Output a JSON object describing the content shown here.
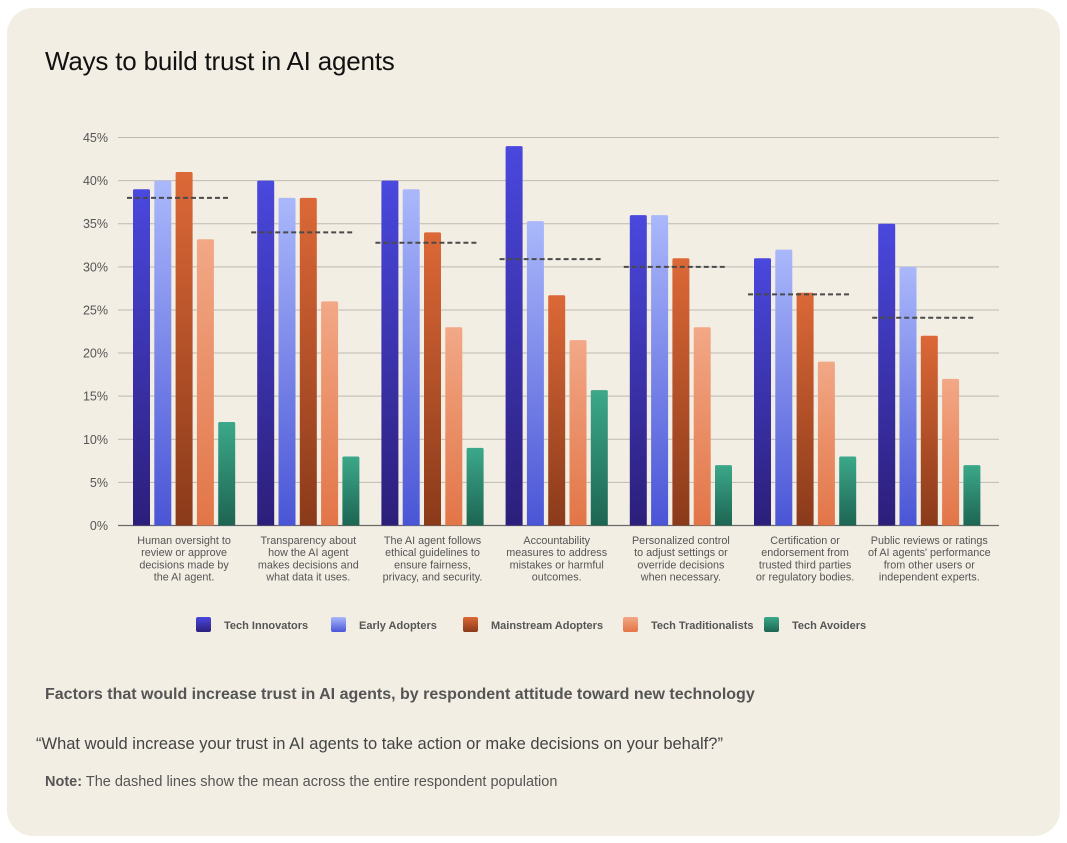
{
  "title": "Ways to build trust in AI agents",
  "subtitle": "Factors that would increase trust in AI agents, by respondent attitude toward new technology",
  "question": "“What would increase your trust in AI agents to take action or make decisions on your behalf?”",
  "note": {
    "label": "Note:",
    "text": "The dashed lines show the mean across the entire respondent population"
  },
  "chart_data": {
    "type": "bar",
    "ylim": [
      0,
      45
    ],
    "yticks": [
      "0%",
      "5%",
      "10%",
      "15%",
      "20%",
      "25%",
      "30%",
      "35%",
      "40%",
      "45%"
    ],
    "grid": true,
    "legend_position": "bottom",
    "categories": [
      [
        "Human oversight to",
        "review or approve",
        "decisions made by",
        "the AI agent."
      ],
      [
        "Transparency about",
        "how the AI agent",
        "makes decisions and",
        "what data it uses."
      ],
      [
        "The AI agent follows",
        "ethical guidelines to",
        "ensure fairness,",
        "privacy, and security."
      ],
      [
        "Accountability",
        "measures to address",
        "mistakes or harmful",
        "outcomes."
      ],
      [
        "Personalized control",
        "to adjust settings or",
        "override decisions",
        "when necessary."
      ],
      [
        "Certification or",
        "endorsement from",
        "trusted third parties",
        "or regulatory bodies."
      ],
      [
        "Public reviews or ratings",
        "of AI agents' performance",
        "from other users or",
        "independent experts."
      ]
    ],
    "series": [
      {
        "name": "Tech Innovators",
        "color_top": "#4a48de",
        "color_bottom": "#2c1e7a",
        "values": [
          39,
          40,
          40,
          44,
          36,
          31,
          35
        ]
      },
      {
        "name": "Early Adopters",
        "color_top": "#aab8fb",
        "color_bottom": "#4a55d6",
        "values": [
          40,
          38,
          39,
          35.3,
          36,
          32,
          30
        ]
      },
      {
        "name": "Mainstream Adopters",
        "color_top": "#dc6837",
        "color_bottom": "#8a3a1a",
        "values": [
          41,
          38,
          34,
          26.7,
          31,
          27,
          22
        ]
      },
      {
        "name": "Tech Traditionalists",
        "color_top": "#f2a886",
        "color_bottom": "#e27548",
        "values": [
          33.2,
          26,
          23,
          21.5,
          23,
          19,
          17
        ]
      },
      {
        "name": "Tech Avoiders",
        "color_top": "#3ca88a",
        "color_bottom": "#1d6552",
        "values": [
          12,
          8,
          9,
          15.7,
          7,
          8,
          7
        ]
      }
    ],
    "mean": [
      38,
      34,
      32.8,
      30.9,
      30,
      26.8,
      24.1
    ]
  }
}
